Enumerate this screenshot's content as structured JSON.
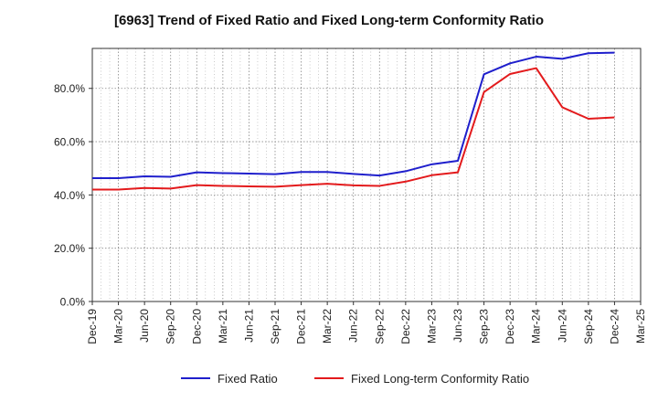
{
  "chart_data": {
    "type": "line",
    "title": "[6963]  Trend of Fixed Ratio and Fixed Long-term Conformity Ratio",
    "xlabel": "",
    "ylabel": "",
    "x": [
      "Dec-19",
      "Mar-20",
      "Jun-20",
      "Sep-20",
      "Dec-20",
      "Mar-21",
      "Jun-21",
      "Sep-21",
      "Dec-21",
      "Mar-22",
      "Jun-22",
      "Sep-22",
      "Dec-22",
      "Mar-23",
      "Jun-23",
      "Sep-23",
      "Dec-23",
      "Mar-24",
      "Jun-24",
      "Sep-24",
      "Dec-24",
      "Mar-25"
    ],
    "ylim": [
      0,
      95
    ],
    "yticks": [
      0,
      20,
      40,
      60,
      80
    ],
    "ytick_labels": [
      "0.0%",
      "20.0%",
      "40.0%",
      "60.0%",
      "80.0%"
    ],
    "grid": true,
    "legend_position": "bottom",
    "series": [
      {
        "name": "Fixed Ratio",
        "color": "#1f1fcc",
        "values": [
          46.3,
          46.3,
          47.0,
          46.8,
          48.5,
          48.2,
          48.0,
          47.8,
          48.6,
          48.6,
          47.9,
          47.3,
          48.9,
          51.5,
          52.8,
          85.3,
          89.4,
          91.9,
          91.1,
          93.2,
          93.4,
          null
        ]
      },
      {
        "name": "Fixed Long-term Conformity Ratio",
        "color": "#e31a1c",
        "values": [
          42.0,
          42.0,
          42.6,
          42.4,
          43.7,
          43.4,
          43.2,
          43.1,
          43.7,
          44.2,
          43.6,
          43.4,
          45.0,
          47.4,
          48.5,
          78.6,
          85.4,
          87.6,
          72.9,
          68.6,
          69.1,
          null
        ]
      }
    ]
  }
}
